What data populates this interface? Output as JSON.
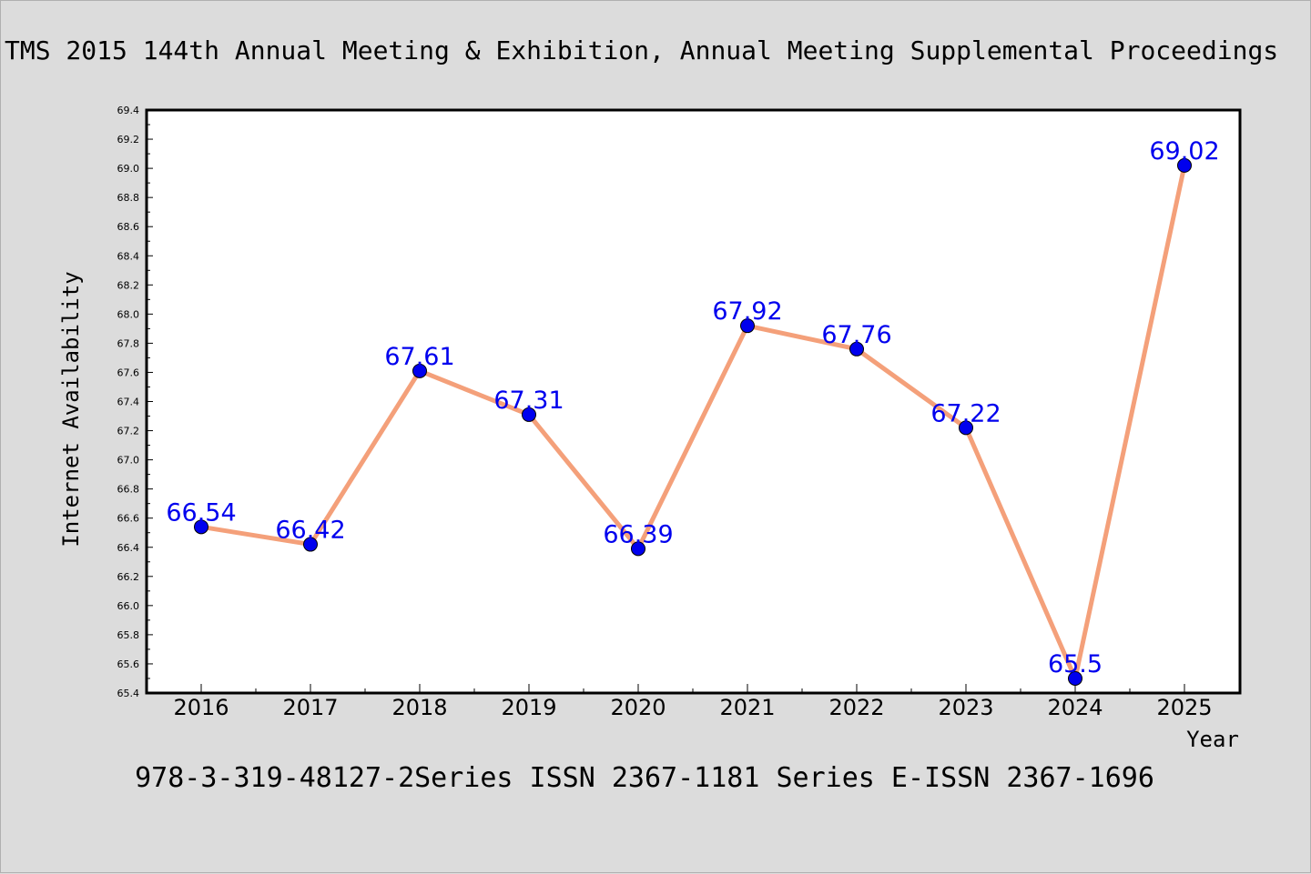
{
  "title": "TMS 2015 144th Annual Meeting & Exhibition, Annual Meeting Supplemental Proceedings",
  "footer": "978-3-319-48127-2Series ISSN 2367-1181 Series E-ISSN 2367-1696",
  "colors": {
    "background": "#dcdcdc",
    "plot_background": "#ffffff",
    "line": "#f4a07a",
    "marker": "#0000ee",
    "data_label": "#0000ee"
  },
  "chart_data": {
    "type": "line",
    "title": "TMS 2015 144th Annual Meeting & Exhibition, Annual Meeting Supplemental Proceedings",
    "xlabel": "Year",
    "ylabel": "Internet Availability",
    "categories": [
      "2016",
      "2017",
      "2018",
      "2019",
      "2020",
      "2021",
      "2022",
      "2023",
      "2024",
      "2025"
    ],
    "series": [
      {
        "values": [
          66.54,
          66.42,
          67.61,
          67.31,
          66.39,
          67.92,
          67.76,
          67.22,
          65.5,
          69.02
        ],
        "labels": [
          "66.54",
          "66.42",
          "67.61",
          "67.31",
          "66.39",
          "67.92",
          "67.76",
          "67.22",
          "65.5",
          "69.02"
        ]
      }
    ],
    "ylim": [
      65.4,
      69.4
    ],
    "yticks": [
      "65.4",
      "65.6",
      "65.8",
      "66.0",
      "66.2",
      "66.4",
      "66.6",
      "66.8",
      "67.0",
      "67.2",
      "67.4",
      "67.6",
      "67.8",
      "68.0",
      "68.2",
      "68.4",
      "68.6",
      "68.8",
      "69.0",
      "69.2",
      "69.4"
    ],
    "grid": false,
    "legend": "none"
  }
}
